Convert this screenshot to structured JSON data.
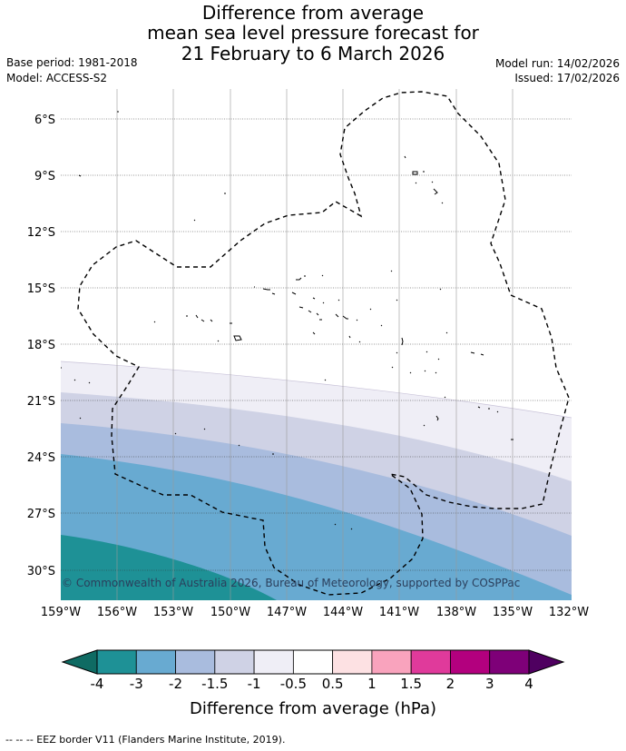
{
  "title": {
    "line1": "Difference from average",
    "line2": "mean sea level pressure forecast for",
    "line3": "21 February to 6 March 2026"
  },
  "meta_left": {
    "base_period": "Base period: 1981-2018",
    "model": "Model: ACCESS-S2"
  },
  "meta_right": {
    "model_run": "Model run: 14/02/2026",
    "issued": "Issued: 17/02/2026"
  },
  "map": {
    "lat_labels": [
      "6°S",
      "9°S",
      "12°S",
      "15°S",
      "18°S",
      "21°S",
      "24°S",
      "27°S",
      "30°S"
    ],
    "lon_labels": [
      "159°W",
      "156°W",
      "153°W",
      "150°W",
      "147°W",
      "144°W",
      "141°W",
      "138°W",
      "135°W",
      "132°W"
    ],
    "copyright": "© Commonwealth of Australia 2026, Bureau of Meteorology, supported by COSPPac"
  },
  "colorbar": {
    "title": "Difference from average (hPa)",
    "tick_labels": [
      "-4",
      "-3",
      "-2",
      "-1.5",
      "-1",
      "-0.5",
      "0.5",
      "1",
      "1.5",
      "2",
      "3",
      "4"
    ],
    "colors": {
      "under": "#0f6b63",
      "bins": [
        "#1e9196",
        "#68aad1",
        "#a9bcde",
        "#cfd2e5",
        "#efeef6",
        "#ffffff",
        "#fde1e3",
        "#f9a3bd",
        "#e03a9b",
        "#b3007e",
        "#7e0078"
      ],
      "over": "#4f0060"
    }
  },
  "footer": "-- -- -- EEZ border V11 (Flanders Marine Institute, 2019)."
}
